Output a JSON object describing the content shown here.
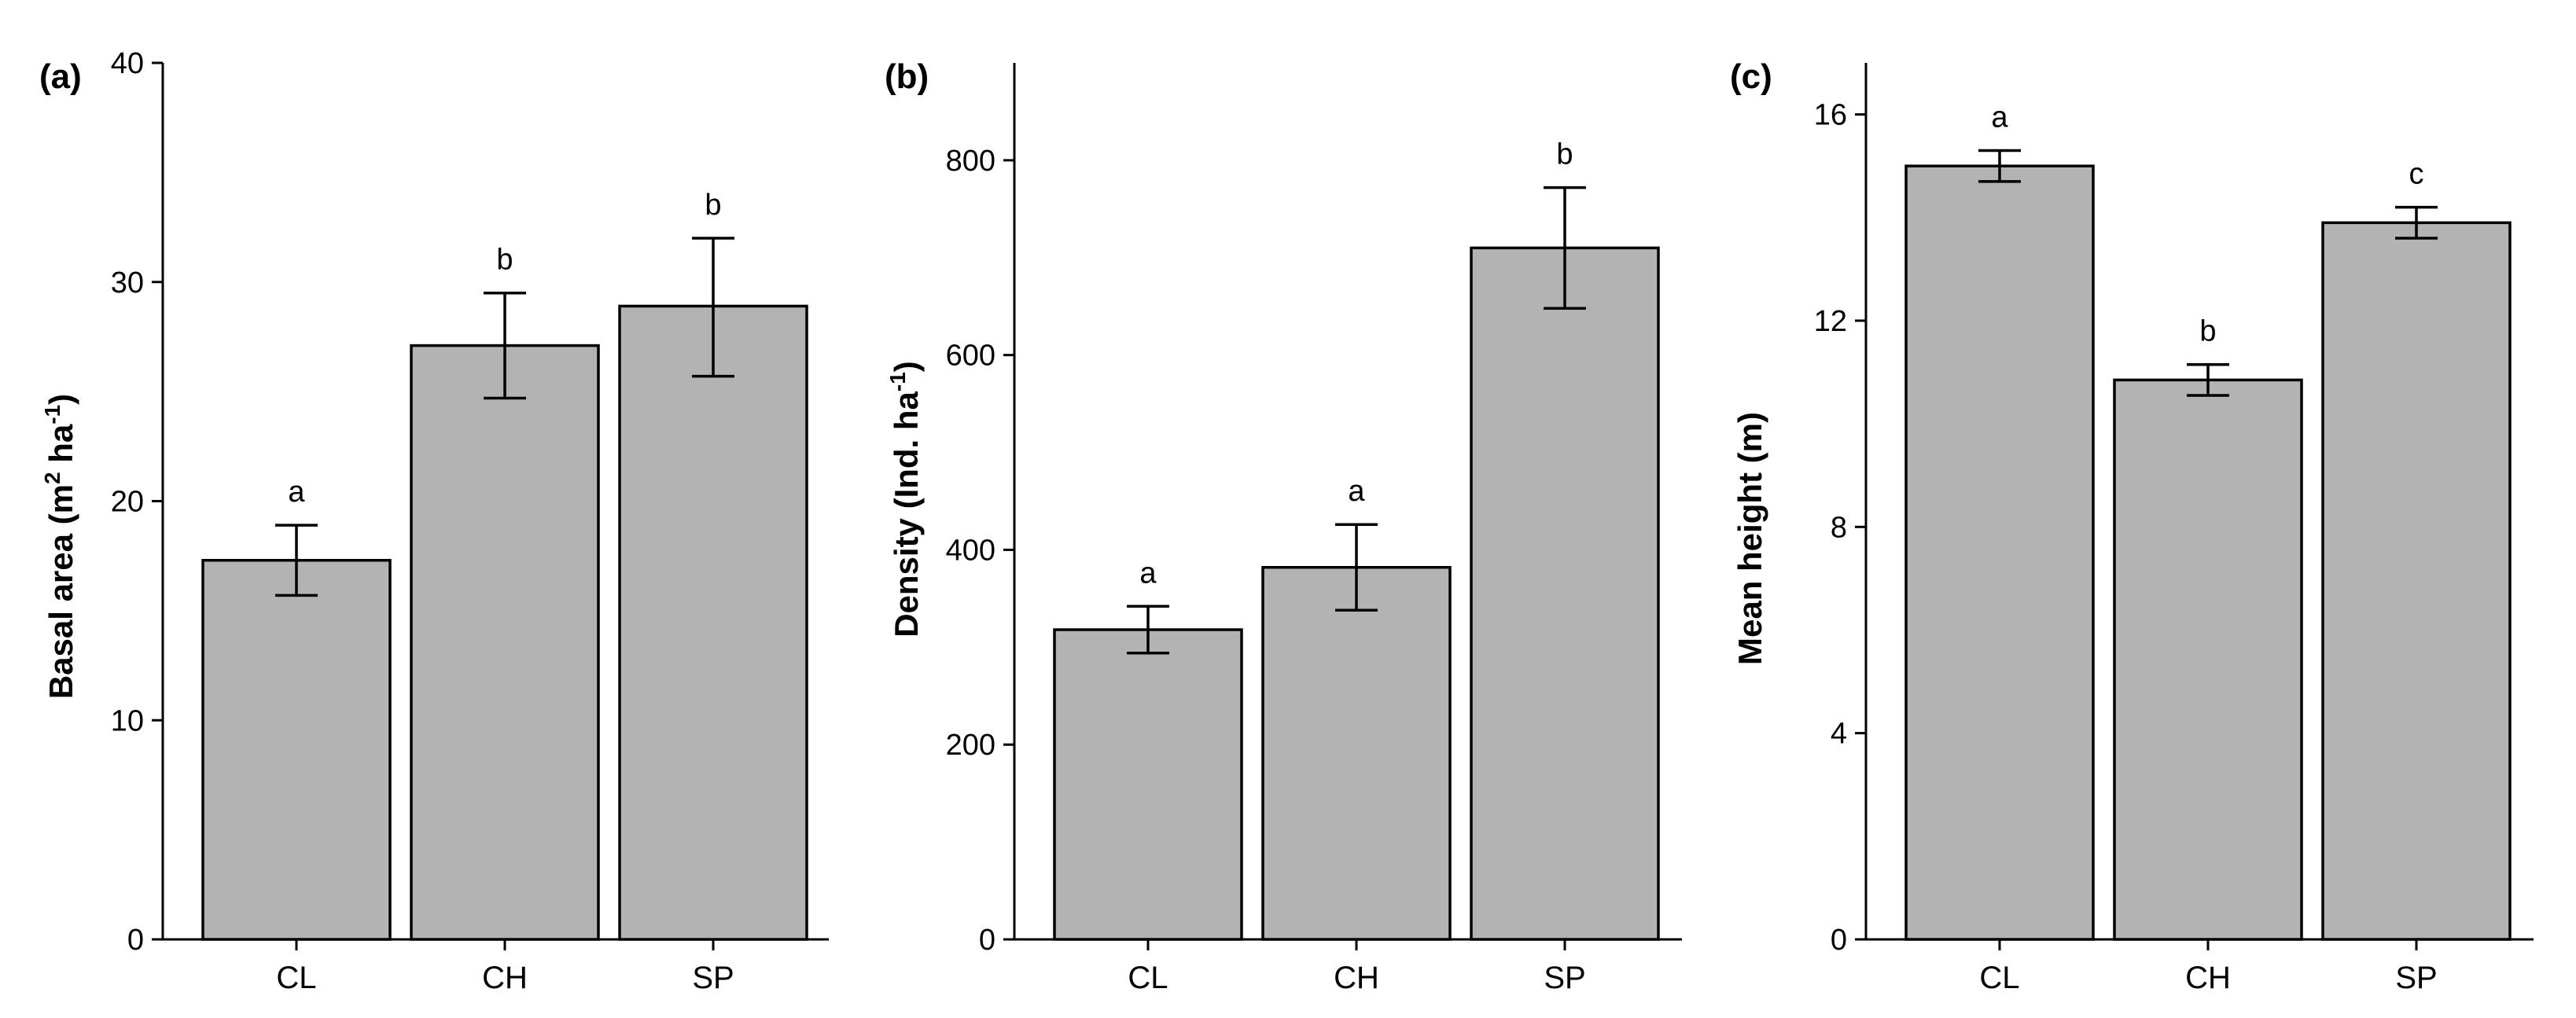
{
  "figure_panels": [
    "(a)",
    "(b)",
    "(c)"
  ],
  "colors": {
    "bar_fill": "#b3b3b3",
    "bar_stroke": "#000000",
    "axis": "#000000"
  },
  "chart_data": [
    {
      "type": "bar",
      "panel_label": "(a)",
      "title": "",
      "xlabel": "",
      "ylabel": "Basal area (m",
      "ylabel_sup1": "2",
      "ylabel_mid": " ha",
      "ylabel_sup2": "-1",
      "ylabel_end": ")",
      "categories": [
        "CL",
        "CH",
        "SP"
      ],
      "values": [
        17.3,
        27.1,
        28.9
      ],
      "error_low": [
        15.7,
        24.7,
        25.7
      ],
      "error_high": [
        18.9,
        29.5,
        32.0
      ],
      "significance": [
        "a",
        "b",
        "b"
      ],
      "ylim": [
        0,
        40
      ],
      "yticks": [
        0,
        10,
        20,
        30,
        40
      ],
      "ytick_labels": [
        "0",
        "10",
        "20",
        "30",
        "40"
      ],
      "grid": false
    },
    {
      "type": "bar",
      "panel_label": "(b)",
      "title": "",
      "xlabel": "",
      "ylabel": "Density (Ind. ha",
      "ylabel_sup1": "-1",
      "ylabel_end": ")",
      "categories": [
        "CL",
        "CH",
        "SP"
      ],
      "values": [
        318,
        382,
        710
      ],
      "error_low": [
        294,
        338,
        648
      ],
      "error_high": [
        342,
        426,
        772
      ],
      "significance": [
        "a",
        "a",
        "b"
      ],
      "ylim": [
        0,
        900
      ],
      "yticks": [
        0,
        200,
        400,
        600,
        800
      ],
      "ytick_labels": [
        "0",
        "200",
        "400",
        "600",
        "800"
      ],
      "grid": false
    },
    {
      "type": "bar",
      "panel_label": "(c)",
      "title": "",
      "xlabel": "",
      "ylabel": "Mean height (m)",
      "categories": [
        "CL",
        "CH",
        "SP"
      ],
      "values": [
        15.0,
        10.85,
        13.9
      ],
      "error_low": [
        14.7,
        10.55,
        13.6
      ],
      "error_high": [
        15.3,
        11.15,
        14.2
      ],
      "significance": [
        "a",
        "b",
        "c"
      ],
      "ylim": [
        0,
        17
      ],
      "yticks": [
        0,
        4,
        8,
        12,
        16
      ],
      "ytick_labels": [
        "0",
        "4",
        "8",
        "12",
        "16"
      ],
      "grid": false
    }
  ]
}
